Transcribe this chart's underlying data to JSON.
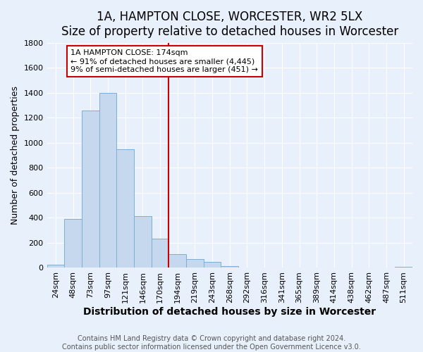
{
  "title": "1A, HAMPTON CLOSE, WORCESTER, WR2 5LX",
  "subtitle": "Size of property relative to detached houses in Worcester",
  "xlabel": "Distribution of detached houses by size in Worcester",
  "ylabel": "Number of detached properties",
  "bar_labels": [
    "24sqm",
    "48sqm",
    "73sqm",
    "97sqm",
    "121sqm",
    "146sqm",
    "170sqm",
    "194sqm",
    "219sqm",
    "243sqm",
    "268sqm",
    "292sqm",
    "316sqm",
    "341sqm",
    "365sqm",
    "389sqm",
    "414sqm",
    "438sqm",
    "462sqm",
    "487sqm",
    "511sqm"
  ],
  "bar_values": [
    25,
    390,
    1260,
    1400,
    950,
    415,
    235,
    110,
    70,
    50,
    15,
    5,
    5,
    0,
    0,
    0,
    0,
    0,
    0,
    0,
    10
  ],
  "bar_color": "#c5d8ed",
  "bar_edge_color": "#7bafd4",
  "vline_color": "#cc0000",
  "annotation_title": "1A HAMPTON CLOSE: 174sqm",
  "annotation_line1": "← 91% of detached houses are smaller (4,445)",
  "annotation_line2": "9% of semi-detached houses are larger (451) →",
  "annotation_box_color": "#ffffff",
  "annotation_box_edge": "#cc0000",
  "ylim": [
    0,
    1800
  ],
  "yticks": [
    0,
    200,
    400,
    600,
    800,
    1000,
    1200,
    1400,
    1600,
    1800
  ],
  "footer1": "Contains HM Land Registry data © Crown copyright and database right 2024.",
  "footer2": "Contains public sector information licensed under the Open Government Licence v3.0.",
  "background_color": "#e8f0fb",
  "plot_background": "#e8f0fb",
  "title_fontsize": 12,
  "subtitle_fontsize": 10,
  "xlabel_fontsize": 10,
  "ylabel_fontsize": 9,
  "tick_fontsize": 8,
  "footer_fontsize": 7,
  "grid_color": "#ffffff"
}
